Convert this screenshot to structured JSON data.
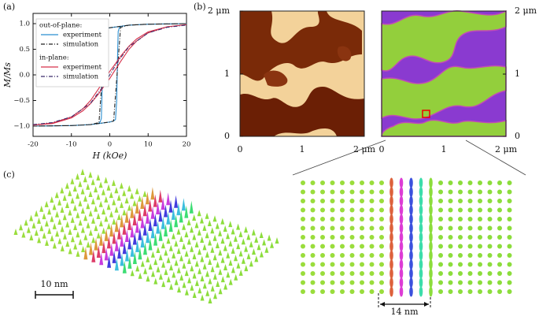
{
  "chart_data": {
    "type": "line",
    "panel_label": "(a)",
    "xlabel": "H (kOe)",
    "ylabel": "M/Ms",
    "xlim": [
      -20,
      20
    ],
    "xticks": [
      -20,
      -10,
      0,
      10,
      20
    ],
    "ylim": [
      -1.2,
      1.2
    ],
    "yticks": [
      {
        "value": -1,
        "label": "−1.0"
      },
      {
        "value": -0.5,
        "label": "−0.5"
      },
      {
        "value": 0,
        "label": "0.0"
      },
      {
        "value": 0.5,
        "label": "0.5"
      },
      {
        "value": 1,
        "label": "1.0"
      }
    ],
    "legend_titles": [
      "out-of-plane:",
      "in-plane:"
    ],
    "series": [
      {
        "name": "experiment",
        "color": "#2b8fd1",
        "style": "solid",
        "x": [
          -20,
          -15,
          -10,
          -5,
          -3,
          -1,
          0,
          1,
          1.5,
          1.8,
          2,
          2.2,
          2.5,
          3,
          5,
          10,
          15,
          20,
          15,
          10,
          5,
          3,
          1,
          0,
          -1,
          -1.5,
          -1.8,
          -2,
          -2.2,
          -2.5,
          -3,
          -5,
          -10,
          -15,
          -20
        ],
        "values": [
          -1,
          -0.995,
          -0.99,
          -0.97,
          -0.95,
          -0.93,
          -0.92,
          -0.9,
          -0.87,
          -0.5,
          0.3,
          0.85,
          0.92,
          0.95,
          0.97,
          0.99,
          0.995,
          1,
          0.995,
          0.99,
          0.97,
          0.95,
          0.93,
          0.92,
          0.9,
          0.87,
          0.5,
          -0.3,
          -0.85,
          -0.92,
          -0.95,
          -0.97,
          -0.99,
          -0.995,
          -1
        ]
      },
      {
        "name": "simulation",
        "color": "#222222",
        "style": "dashdot",
        "x": [
          -20,
          -10,
          -5,
          -2,
          0,
          1,
          1.3,
          2.5,
          2.8,
          5,
          10,
          20,
          10,
          5,
          2,
          0,
          -1,
          -1.3,
          -2.5,
          -2.8,
          -5,
          -10,
          -20
        ],
        "values": [
          -1,
          -0.99,
          -0.97,
          -0.94,
          -0.92,
          -0.9,
          -0.6,
          0.6,
          0.93,
          0.97,
          0.99,
          1,
          0.99,
          0.97,
          0.94,
          0.92,
          0.9,
          0.6,
          -0.6,
          -0.93,
          -0.97,
          -0.99,
          -1
        ]
      },
      {
        "name": "experiment",
        "color": "#d6304a",
        "style": "solid",
        "x": [
          -20,
          -15,
          -10,
          -7,
          -5,
          -3,
          -1,
          0,
          1,
          3,
          5,
          7,
          10,
          15,
          20,
          15,
          10,
          7,
          5,
          3,
          1,
          0,
          -1,
          -3,
          -5,
          -7,
          -10,
          -15,
          -20
        ],
        "values": [
          -0.98,
          -0.95,
          -0.84,
          -0.7,
          -0.56,
          -0.38,
          -0.17,
          -0.07,
          0.05,
          0.28,
          0.5,
          0.66,
          0.82,
          0.94,
          0.98,
          0.94,
          0.84,
          0.7,
          0.56,
          0.38,
          0.17,
          0.07,
          -0.05,
          -0.28,
          -0.5,
          -0.66,
          -0.82,
          -0.94,
          -0.98
        ]
      },
      {
        "name": "simulation",
        "color": "#3a2a6a",
        "style": "dashdot",
        "x": [
          -20,
          -15,
          -10,
          -5,
          -2,
          0,
          2,
          5,
          10,
          15,
          20
        ],
        "values": [
          -0.97,
          -0.93,
          -0.82,
          -0.55,
          -0.25,
          0,
          0.25,
          0.55,
          0.82,
          0.93,
          0.97
        ]
      }
    ]
  },
  "panel_b": {
    "label": "(b)",
    "left_axis": [
      "2 μm",
      "1",
      "0"
    ],
    "left_bottom": [
      "0",
      "1",
      "2 μm"
    ],
    "right_axis": [
      "2 μm",
      "1",
      "0"
    ],
    "right_bottom": [
      "0",
      "1",
      "2 μm"
    ]
  },
  "panel_c": {
    "label": "(c)",
    "scale_left": "10 nm",
    "scale_right": "14 nm"
  }
}
